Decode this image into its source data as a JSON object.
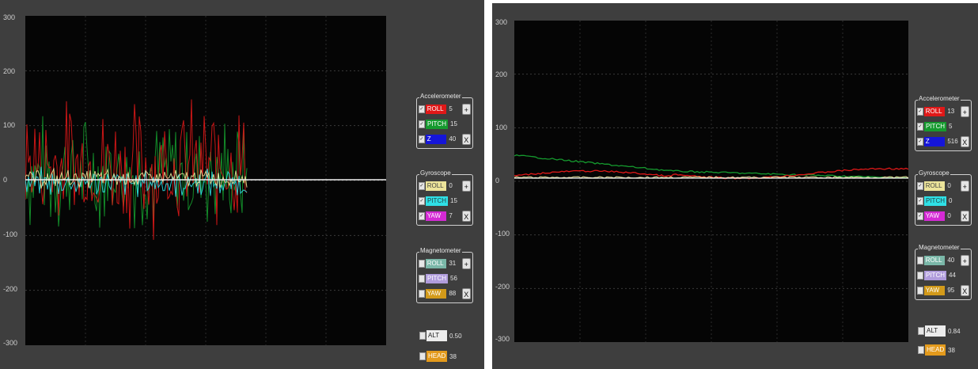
{
  "yticks": [
    "300",
    "200",
    "100",
    "0",
    "-100",
    "-200",
    "-300"
  ],
  "colors": {
    "roll_acc": "#e01818",
    "pitch_acc": "#159a2e",
    "z_acc": "#1515d8",
    "roll_gyro": "#ece49a",
    "pitch_gyro": "#2fe0e6",
    "yaw_gyro": "#d42ad4",
    "roll_mag": "#7ab7a8",
    "pitch_mag": "#b09cdc",
    "yaw_mag": "#d39a1a",
    "alt": "#ececec",
    "head": "#e39a1c"
  },
  "windows": [
    {
      "accelerometer": {
        "title": "Accelerometer",
        "rows": [
          {
            "label": "ROLL",
            "value": "5"
          },
          {
            "label": "PITCH",
            "value": "15"
          },
          {
            "label": "Z",
            "value": "40"
          }
        ],
        "plus": "+",
        "x": "X"
      },
      "gyroscope": {
        "title": "Gyroscope",
        "rows": [
          {
            "label": "ROLL",
            "value": "0"
          },
          {
            "label": "PITCH",
            "value": "15"
          },
          {
            "label": "YAW",
            "value": "7"
          }
        ],
        "plus": "+",
        "x": "X"
      },
      "magnetometer": {
        "title": "Magnetometer",
        "rows": [
          {
            "label": "ROLL",
            "value": "31"
          },
          {
            "label": "PITCH",
            "value": "56"
          },
          {
            "label": "YAW",
            "value": "88"
          }
        ],
        "plus": "+",
        "x": "X"
      },
      "alt": {
        "label": "ALT",
        "value": "0.50"
      },
      "head": {
        "label": "HEAD",
        "value": "38"
      }
    },
    {
      "accelerometer": {
        "title": "Accelerometer",
        "rows": [
          {
            "label": "ROLL",
            "value": "13"
          },
          {
            "label": "PITCH",
            "value": "5"
          },
          {
            "label": "Z",
            "value": "516"
          }
        ],
        "plus": "+",
        "x": "X"
      },
      "gyroscope": {
        "title": "Gyroscope",
        "rows": [
          {
            "label": "ROLL",
            "value": "0"
          },
          {
            "label": "PITCH",
            "value": "0"
          },
          {
            "label": "YAW",
            "value": "0"
          }
        ],
        "plus": "+",
        "x": "X"
      },
      "magnetometer": {
        "title": "Magnetometer",
        "rows": [
          {
            "label": "ROLL",
            "value": "40"
          },
          {
            "label": "PITCH",
            "value": "44"
          },
          {
            "label": "YAW",
            "value": "95"
          }
        ],
        "plus": "+",
        "x": "X"
      },
      "alt": {
        "label": "ALT",
        "value": "0.84"
      },
      "head": {
        "label": "HEAD",
        "value": "38"
      }
    }
  ]
}
